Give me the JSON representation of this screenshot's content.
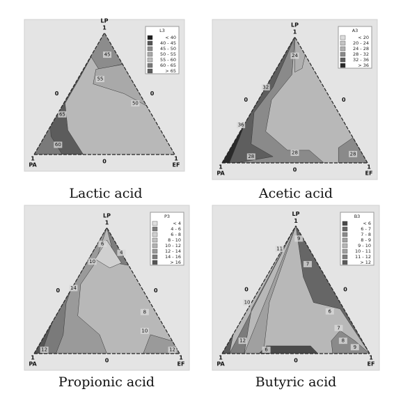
{
  "chart_data": [
    {
      "type": "ternary-contour",
      "title": "Lactic acid",
      "legend_title": "L3",
      "vertices": [
        "LP",
        "PA",
        "EF"
      ],
      "ticks": [
        1,
        0
      ],
      "levels": [
        {
          "label": "< 40",
          "color": "#1e1e1e"
        },
        {
          "label": "40 - 45",
          "color": "#555555"
        },
        {
          "label": "45 - 50",
          "color": "#8c8c8c"
        },
        {
          "label": "50 - 55",
          "color": "#a9a9a9"
        },
        {
          "label": "55 - 60",
          "color": "#bcbcbc"
        },
        {
          "label": "60 - 65",
          "color": "#7a7a7a"
        },
        {
          "label": "> 65",
          "color": "#5c5c5c"
        }
      ],
      "contour_labels": [
        45,
        55,
        50,
        65,
        60
      ]
    },
    {
      "type": "ternary-contour",
      "title": "Acetic acid",
      "legend_title": "A3",
      "vertices": [
        "LP",
        "PA",
        "EF"
      ],
      "ticks": [
        1,
        0
      ],
      "levels": [
        {
          "label": "< 20",
          "color": "#dcdcdc"
        },
        {
          "label": "20 - 24",
          "color": "#c4c4c4"
        },
        {
          "label": "24 - 28",
          "color": "#b0b0b0"
        },
        {
          "label": "28 - 32",
          "color": "#8a8a8a"
        },
        {
          "label": "32 - 36",
          "color": "#5e5e5e"
        },
        {
          "label": "> 36",
          "color": "#2a2a2a"
        }
      ],
      "contour_labels": [
        24,
        32,
        36,
        28,
        28,
        28
      ]
    },
    {
      "type": "ternary-contour",
      "title": "Propionic acid",
      "legend_title": "P3",
      "vertices": [
        "LP",
        "PA",
        "EF"
      ],
      "ticks": [
        1,
        0
      ],
      "levels": [
        {
          "label": "< 4",
          "color": "#e0e0e0"
        },
        {
          "label": "4 - 6",
          "color": "#7e7e7e"
        },
        {
          "label": "6 - 8",
          "color": "#d0d0d0"
        },
        {
          "label": "8 - 10",
          "color": "#c0c0c0"
        },
        {
          "label": "10 - 12",
          "color": "#b2b2b2"
        },
        {
          "label": "12 - 14",
          "color": "#9a9a9a"
        },
        {
          "label": "14 - 16",
          "color": "#7a7a7a"
        },
        {
          "label": "> 16",
          "color": "#555555"
        }
      ],
      "contour_labels": [
        6,
        4,
        10,
        14,
        8,
        10,
        12,
        12
      ]
    },
    {
      "type": "ternary-contour",
      "title": "Butyric acid",
      "legend_title": "B3",
      "vertices": [
        "LP",
        "PA",
        "EF"
      ],
      "ticks": [
        1,
        0
      ],
      "levels": [
        {
          "label": "< 6",
          "color": "#4a4a4a"
        },
        {
          "label": "6 - 7",
          "color": "#666666"
        },
        {
          "label": "7 - 8",
          "color": "#8a8a8a"
        },
        {
          "label": "8 - 9",
          "color": "#a2a2a2"
        },
        {
          "label": "9 - 10",
          "color": "#b6b6b6"
        },
        {
          "label": "10 - 11",
          "color": "#a0a0a0"
        },
        {
          "label": "11 - 12",
          "color": "#7c7c7c"
        },
        {
          "label": "> 12",
          "color": "#5a5a5a"
        }
      ],
      "contour_labels": [
        9,
        11,
        7,
        10,
        6,
        7,
        8,
        9,
        12,
        6
      ]
    }
  ]
}
